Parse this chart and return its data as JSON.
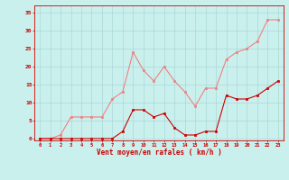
{
  "x": [
    0,
    1,
    2,
    3,
    4,
    5,
    6,
    7,
    8,
    9,
    10,
    11,
    12,
    13,
    14,
    15,
    16,
    17,
    18,
    19,
    20,
    21,
    22,
    23
  ],
  "rafales": [
    0,
    0,
    1,
    6,
    6,
    6,
    6,
    11,
    13,
    24,
    19,
    16,
    20,
    16,
    13,
    9,
    14,
    14,
    22,
    24,
    25,
    27,
    33,
    33
  ],
  "vent_moyen": [
    0,
    0,
    0,
    0,
    0,
    0,
    0,
    0,
    2,
    8,
    8,
    6,
    7,
    3,
    1,
    1,
    2,
    2,
    12,
    11,
    11,
    12,
    14,
    16
  ],
  "color_rafales": "#f08080",
  "color_vent": "#cc0000",
  "bg_color": "#caf0ee",
  "grid_color": "#a8d8d8",
  "xlabel": "Vent moyen/en rafales ( km/h )",
  "yticks": [
    0,
    5,
    10,
    15,
    20,
    25,
    30,
    35
  ],
  "xlim": [
    -0.5,
    23.5
  ],
  "ylim": [
    -0.5,
    37
  ]
}
